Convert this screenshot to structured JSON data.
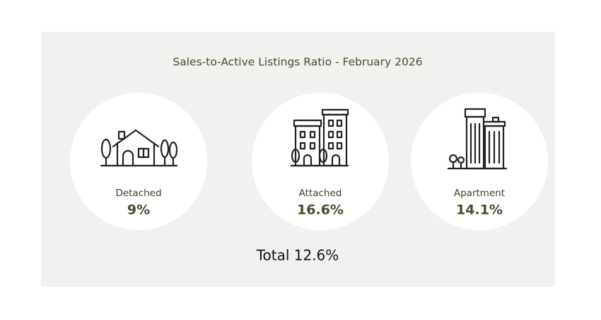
{
  "header": {
    "title": "Sales-to-Active Listings Ratio - February 2026"
  },
  "items": [
    {
      "label": "Detached",
      "value": "9%"
    },
    {
      "label": "Attached",
      "value": "16.6%"
    },
    {
      "label": "Apartment",
      "value": "14.1%"
    }
  ],
  "total": "Total 12.6%"
}
